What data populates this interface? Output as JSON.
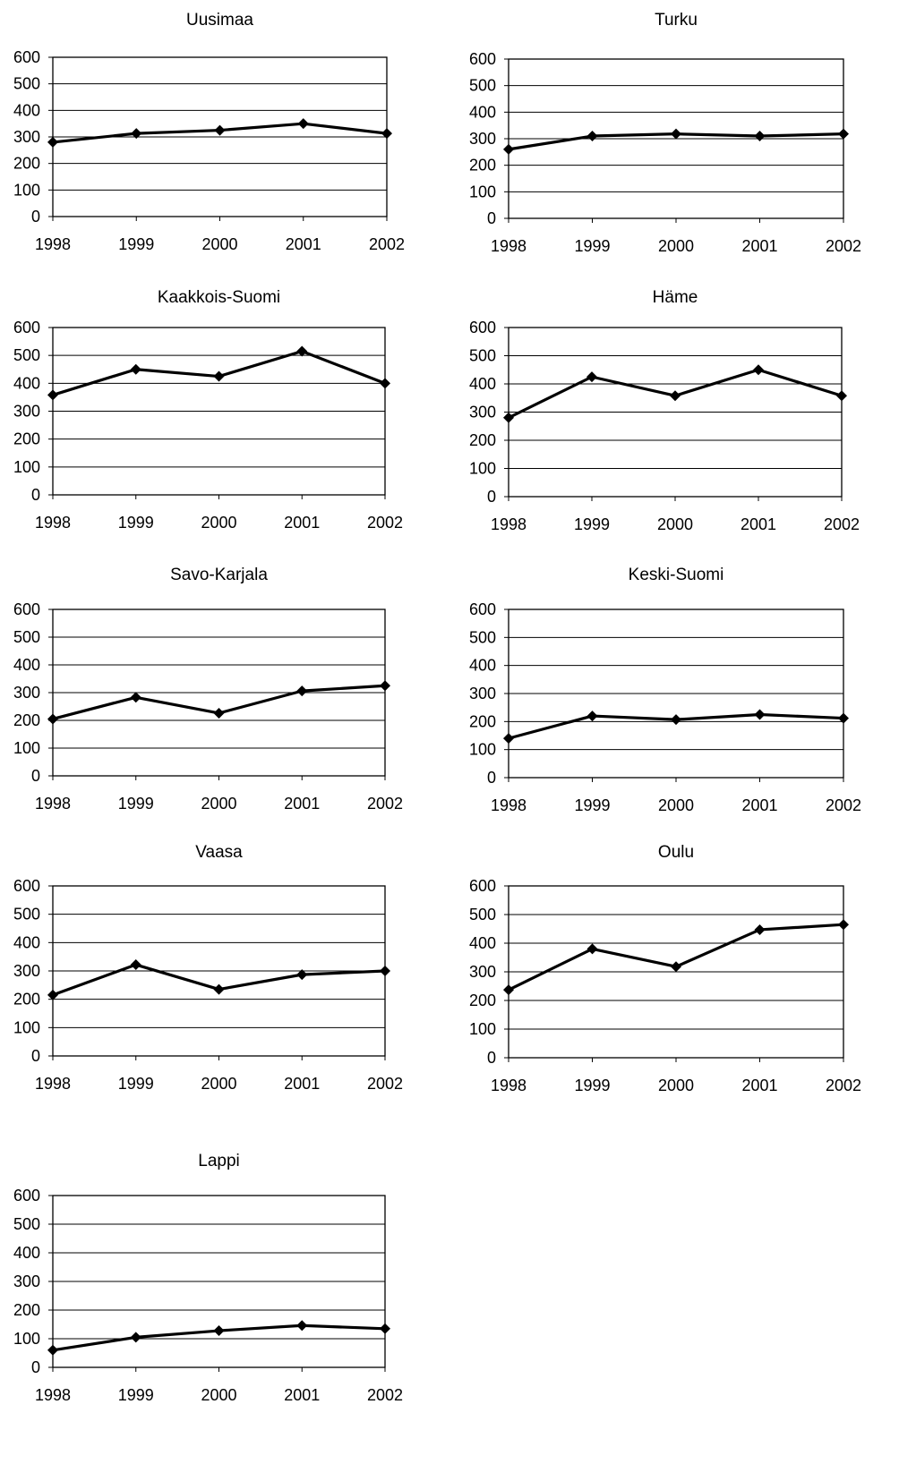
{
  "chart_data": [
    {
      "type": "line",
      "title": "Uusimaa",
      "x": [
        "1998",
        "1999",
        "2000",
        "2001",
        "2002"
      ],
      "values": [
        280,
        313,
        325,
        350,
        313
      ],
      "ylim": [
        0,
        600
      ],
      "yticks": [
        "0",
        "100",
        "200",
        "300",
        "400",
        "500",
        "600"
      ],
      "grid": true
    },
    {
      "type": "line",
      "title": "Turku",
      "x": [
        "1998",
        "1999",
        "2000",
        "2001",
        "2002"
      ],
      "values": [
        260,
        310,
        318,
        310,
        318
      ],
      "ylim": [
        0,
        600
      ],
      "yticks": [
        "0",
        "100",
        "200",
        "300",
        "400",
        "500",
        "600"
      ],
      "grid": true
    },
    {
      "type": "line",
      "title": "Kaakkois-Suomi",
      "x": [
        "1998",
        "1999",
        "2000",
        "2001",
        "2002"
      ],
      "values": [
        358,
        450,
        425,
        515,
        400
      ],
      "ylim": [
        0,
        600
      ],
      "yticks": [
        "0",
        "100",
        "200",
        "300",
        "400",
        "500",
        "600"
      ],
      "grid": true
    },
    {
      "type": "line",
      "title": "Häme",
      "x": [
        "1998",
        "1999",
        "2000",
        "2001",
        "2002"
      ],
      "values": [
        280,
        425,
        358,
        450,
        358
      ],
      "ylim": [
        0,
        600
      ],
      "yticks": [
        "0",
        "100",
        "200",
        "300",
        "400",
        "500",
        "600"
      ],
      "grid": true
    },
    {
      "type": "line",
      "title": "Savo-Karjala",
      "x": [
        "1998",
        "1999",
        "2000",
        "2001",
        "2002"
      ],
      "values": [
        205,
        283,
        226,
        306,
        325
      ],
      "ylim": [
        0,
        600
      ],
      "yticks": [
        "0",
        "100",
        "200",
        "300",
        "400",
        "500",
        "600"
      ],
      "grid": true
    },
    {
      "type": "line",
      "title": "Keski-Suomi",
      "x": [
        "1998",
        "1999",
        "2000",
        "2001",
        "2002"
      ],
      "values": [
        140,
        220,
        207,
        225,
        212
      ],
      "ylim": [
        0,
        600
      ],
      "yticks": [
        "0",
        "100",
        "200",
        "300",
        "400",
        "500",
        "600"
      ],
      "grid": true
    },
    {
      "type": "line",
      "title": "Vaasa",
      "x": [
        "1998",
        "1999",
        "2000",
        "2001",
        "2002"
      ],
      "values": [
        215,
        322,
        235,
        287,
        300
      ],
      "ylim": [
        0,
        600
      ],
      "yticks": [
        "0",
        "100",
        "200",
        "300",
        "400",
        "500",
        "600"
      ],
      "grid": true
    },
    {
      "type": "line",
      "title": "Oulu",
      "x": [
        "1998",
        "1999",
        "2000",
        "2001",
        "2002"
      ],
      "values": [
        237,
        380,
        318,
        447,
        465
      ],
      "ylim": [
        0,
        600
      ],
      "yticks": [
        "0",
        "100",
        "200",
        "300",
        "400",
        "500",
        "600"
      ],
      "grid": true
    },
    {
      "type": "line",
      "title": "Lappi",
      "x": [
        "1998",
        "1999",
        "2000",
        "2001",
        "2002"
      ],
      "values": [
        60,
        105,
        128,
        146,
        135
      ],
      "ylim": [
        0,
        600
      ],
      "yticks": [
        "0",
        "100",
        "200",
        "300",
        "400",
        "500",
        "600"
      ],
      "grid": true
    }
  ]
}
